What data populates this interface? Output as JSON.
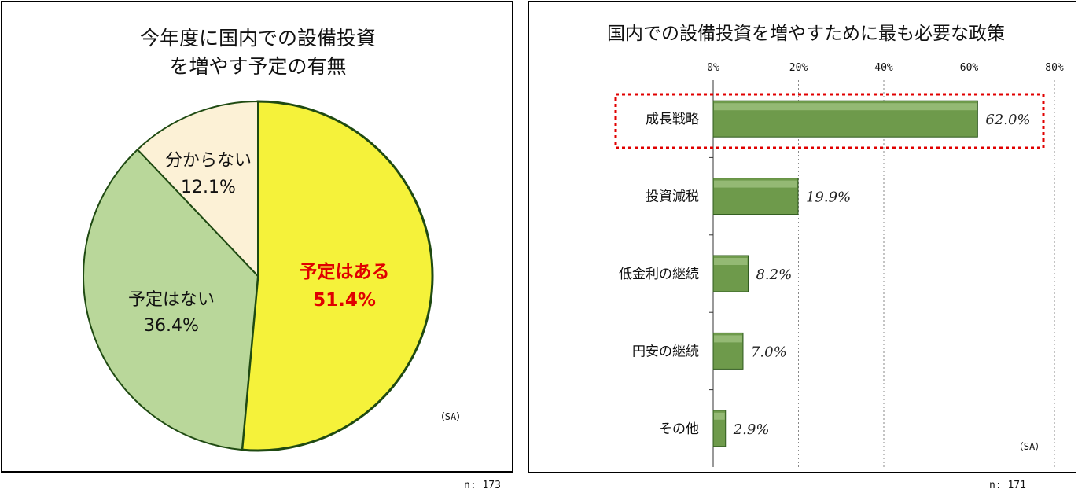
{
  "chart_data": [
    {
      "type": "pie",
      "title_lines": [
        "今年度に国内での設備投資",
        "を増やす予定の有無"
      ],
      "slices": [
        {
          "label": "予定はある",
          "value": 51.4,
          "value_label": "51.4%",
          "color": "#f5f23a",
          "highlight": true
        },
        {
          "label": "予定はない",
          "value": 36.4,
          "value_label": "36.4%",
          "color": "#b9d79a",
          "highlight": false
        },
        {
          "label": "分からない",
          "value": 12.1,
          "value_label": "12.1%",
          "color": "#fcf1d6",
          "highlight": false
        }
      ],
      "note": "（SA）",
      "n": "n: 173"
    },
    {
      "type": "bar",
      "orientation": "horizontal",
      "title": "国内での設備投資を増やすために最も必要な政策",
      "categories": [
        "成長戦略",
        "投資減税",
        "低金利の継続",
        "円安の継続",
        "その他"
      ],
      "values": [
        62.0,
        19.9,
        8.2,
        7.0,
        2.9
      ],
      "value_labels": [
        "62.0%",
        "19.9%",
        "8.2%",
        "7.0%",
        "2.9%"
      ],
      "xlim": [
        0,
        80
      ],
      "ticks": [
        "0%",
        "20%",
        "40%",
        "60%",
        "80%"
      ],
      "tick_values": [
        0,
        20,
        40,
        60,
        80
      ],
      "grid": true,
      "highlighted_category": "成長戦略",
      "bar_color": "#6e9a4b",
      "note": "（SA）",
      "n": "n: 171"
    }
  ]
}
